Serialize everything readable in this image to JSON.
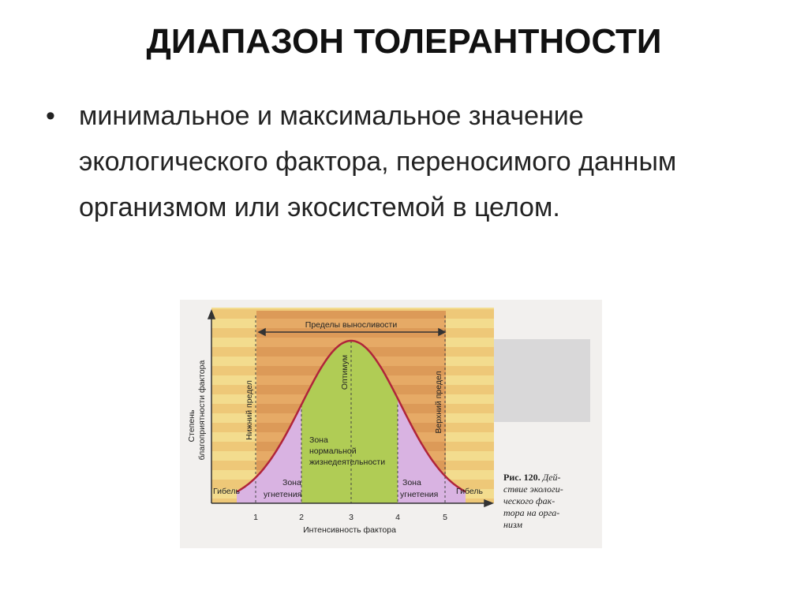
{
  "slide": {
    "title": "ДИАПАЗОН ТОЛЕРАНТНОСТИ",
    "bullet_marker": "•",
    "bullet": "минимальное и максимальное значение экологического фактора, переносимого данным организмом или экосистемой в целом."
  },
  "figure": {
    "range_label": "Пределы выносливости",
    "lower_limit": "Нижний предел",
    "upper_limit": "Верхний предел",
    "optimum": "Оптимум",
    "normal_zone": [
      "Зона",
      "нормальной",
      "жизнедеятельности"
    ],
    "oppression_zone": [
      "Зона",
      "угнетения"
    ],
    "death": "Гибель",
    "x_ticks": [
      "1",
      "2",
      "3",
      "4",
      "5"
    ],
    "x_label": "Интенсивность фактора",
    "y_label": [
      "Степень",
      "благоприятности фактора"
    ],
    "caption_bold": "Рис. 120.",
    "caption_lines": [
      "Дей-",
      "ствие экологи-",
      "ческого фак-",
      "тора на орга-",
      "низм"
    ],
    "colors": {
      "curve": "#b0243a",
      "optimum_zone": "#a8c850",
      "oppression_zone": "#d8b0e0",
      "limits_band": "#e0a060",
      "outer_band": "#f0d890"
    }
  }
}
